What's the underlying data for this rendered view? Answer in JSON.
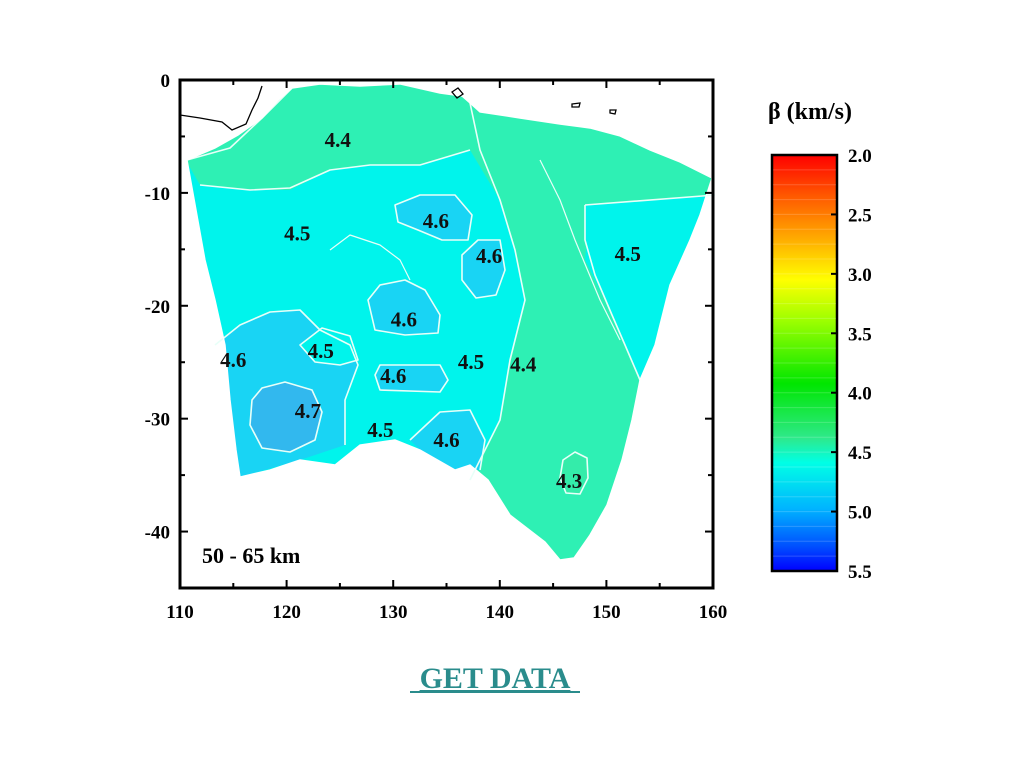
{
  "map": {
    "depth_label": "50 - 65 km",
    "x_ticks": [
      "110",
      "120",
      "130",
      "140",
      "150",
      "160"
    ],
    "y_ticks": [
      "0",
      "-10",
      "-20",
      "-30",
      "-40"
    ],
    "x_range": [
      110,
      160
    ],
    "y_range": [
      -45,
      0
    ],
    "contour_labels": [
      {
        "text": "4.4",
        "lon": 124.8,
        "lat": -5.3
      },
      {
        "text": "4.5",
        "lon": 121.0,
        "lat": -13.6
      },
      {
        "text": "4.6",
        "lon": 134.0,
        "lat": -12.5
      },
      {
        "text": "4.6",
        "lon": 139.0,
        "lat": -15.6
      },
      {
        "text": "4.5",
        "lon": 152.0,
        "lat": -15.4
      },
      {
        "text": "4.6",
        "lon": 131.0,
        "lat": -21.2
      },
      {
        "text": "4.5",
        "lon": 123.2,
        "lat": -24.0
      },
      {
        "text": "4.6",
        "lon": 115.0,
        "lat": -24.8
      },
      {
        "text": "4.6",
        "lon": 130.0,
        "lat": -26.2
      },
      {
        "text": "4.5",
        "lon": 137.3,
        "lat": -25.0
      },
      {
        "text": "4.4",
        "lon": 142.2,
        "lat": -25.2
      },
      {
        "text": "4.7",
        "lon": 122.0,
        "lat": -29.3
      },
      {
        "text": "4.5",
        "lon": 128.8,
        "lat": -31.0
      },
      {
        "text": "4.6",
        "lon": 135.0,
        "lat": -31.9
      },
      {
        "text": "4.3",
        "lon": 146.5,
        "lat": -35.5
      }
    ]
  },
  "colorbar": {
    "title": "β (km/s)",
    "tick_labels": [
      "2.0",
      "2.5",
      "3.0",
      "3.5",
      "4.0",
      "4.5",
      "5.0",
      "5.5"
    ],
    "range": [
      2.0,
      5.5
    ],
    "colors": [
      "#ff0000",
      "#ff5a00",
      "#ffaa00",
      "#ffff00",
      "#9bff00",
      "#00e600",
      "#2ee98a",
      "#00ffe6",
      "#00b4ff",
      "#0050ff",
      "#0000ff"
    ]
  },
  "link": {
    "label": "GET DATA"
  },
  "colors": {
    "region_teal": "#2ef0b4",
    "region_cyan": "#00f4ec",
    "region_blue_mid": "#19d4f4",
    "region_blue_deep": "#32b8ee",
    "link": "#2a8c8c"
  }
}
